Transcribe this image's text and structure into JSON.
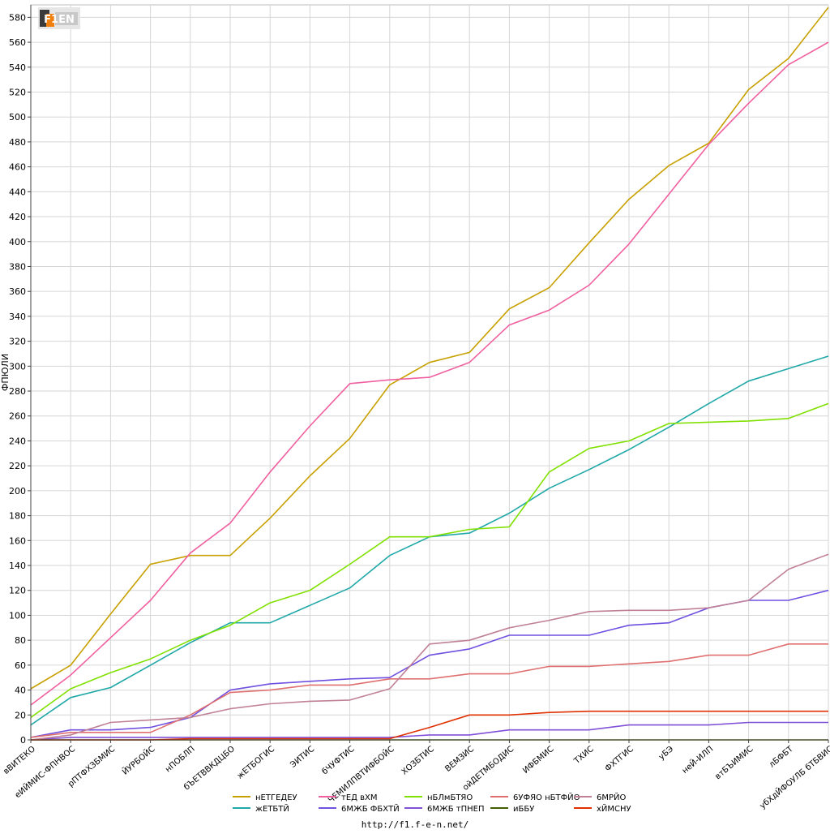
{
  "logo_text": "F1EN",
  "footer_url": "http://f1.f-e-n.net/",
  "chart_data": {
    "type": "line",
    "title": "",
    "xlabel": "",
    "ylabel": "ФПЮЛИ",
    "ylim": [
      0,
      590
    ],
    "yticks": [
      0,
      20,
      40,
      60,
      80,
      100,
      120,
      140,
      160,
      180,
      200,
      220,
      240,
      260,
      280,
      300,
      320,
      340,
      360,
      380,
      400,
      420,
      440,
      460,
      480,
      500,
      520,
      540,
      560,
      580
    ],
    "grid": true,
    "legend_position": "bottom",
    "categories": [
      "вВИТЕКО",
      "еИЙМИС-ФПНВОС",
      "рПТФХЗБМИС",
      "ЙУРБОЙС",
      "нПОБЛП",
      "бЪЕТВВКДЦБО",
      "жЕТБОГИС",
      "ЭИТИС",
      "бЧУФТИС",
      "ЧЕМИЛПВТИФБОЙС",
      "ХОЗБТИС",
      "ВЕМЗИС",
      "ойДЕТМБОДИС",
      "ИФБМИС",
      "ТХИС",
      "ФХТГИС",
      "уБЭ",
      "неЙ-ИЛП",
      "втБЪИМИС",
      "лБФБТ",
      "убХдЙФОУЛБ бТБВИС"
    ],
    "series": [
      {
        "name": "нЕТГЕДЕУ",
        "color": "#c8a000",
        "values": [
          41,
          60,
          101,
          141,
          148,
          148,
          178,
          212,
          242,
          285,
          303,
          311,
          346,
          363,
          399,
          434,
          461,
          479,
          522,
          547,
          588
        ]
      },
      {
        "name": "жЕТБТЙ",
        "color": "#20a8a8",
        "values": [
          12,
          34,
          42,
          60,
          78,
          94,
          94,
          108,
          122,
          148,
          163,
          166,
          182,
          202,
          217,
          233,
          251,
          270,
          288,
          298,
          308
        ]
      },
      {
        "name": "тЕД вХМ",
        "color": "#f060a0",
        "values": [
          28,
          52,
          82,
          112,
          150,
          174,
          215,
          252,
          286,
          289,
          291,
          303,
          333,
          345,
          365,
          398,
          438,
          478,
          511,
          542,
          560
        ]
      },
      {
        "name": "6МЖБ ФБХТЙ",
        "color": "#7050e0",
        "values": [
          2,
          8,
          8,
          10,
          18,
          40,
          45,
          47,
          49,
          50,
          68,
          73,
          84,
          84,
          84,
          92,
          94,
          106,
          112,
          112,
          120
        ]
      },
      {
        "name": "нБЛмБТЯО",
        "color": "#80e000",
        "values": [
          18,
          41,
          54,
          65,
          80,
          92,
          110,
          120,
          141,
          163,
          163,
          169,
          171,
          215,
          234,
          240,
          254,
          255,
          256,
          258,
          270
        ]
      },
      {
        "name": "6МЖБ тПНЕП",
        "color": "#8050d8",
        "values": [
          0,
          2,
          2,
          2,
          2,
          2,
          2,
          2,
          2,
          2,
          4,
          4,
          8,
          8,
          8,
          12,
          12,
          12,
          14,
          14,
          14
        ]
      },
      {
        "name": "6УФЯО нБТФЙО",
        "color": "#e07070",
        "values": [
          2,
          6,
          6,
          6,
          20,
          38,
          40,
          44,
          44,
          49,
          49,
          53,
          53,
          59,
          59,
          61,
          63,
          68,
          68,
          77,
          77
        ]
      },
      {
        "name": "иББУ",
        "color": "#406000",
        "values": [
          0,
          0,
          0,
          0,
          0,
          0,
          0,
          0,
          0,
          0,
          0,
          0,
          0,
          0,
          0,
          0,
          0,
          0,
          0,
          0,
          0
        ]
      },
      {
        "name": "6МРЙО",
        "color": "#c08098",
        "values": [
          0,
          4,
          14,
          16,
          18,
          25,
          29,
          31,
          32,
          41,
          77,
          80,
          90,
          96,
          103,
          104,
          104,
          106,
          112,
          137,
          149
        ]
      },
      {
        "name": "хЙМСНУ",
        "color": "#e03000",
        "values": [
          0,
          0,
          0,
          0,
          1,
          1,
          1,
          1,
          1,
          1,
          10,
          20,
          20,
          22,
          23,
          23,
          23,
          23,
          23,
          23,
          23
        ]
      }
    ]
  }
}
